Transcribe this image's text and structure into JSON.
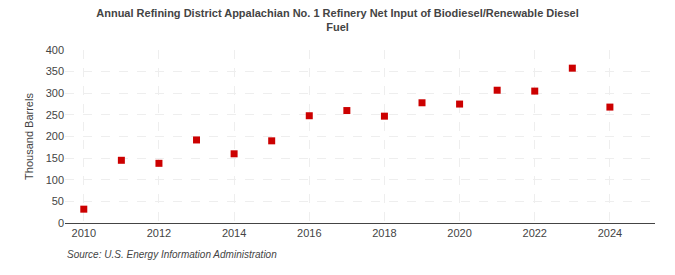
{
  "chart_data": {
    "type": "scatter",
    "title": "Annual Refining District Appalachian No. 1 Refinery Net Input of Biodiesel/Renewable Diesel\nFuel",
    "y_label": "Thousand Barrels",
    "annotations": [
      "Source: U.S. Energy Information Administration"
    ],
    "x": [
      2010,
      2011,
      2012,
      2013,
      2014,
      2015,
      2016,
      2017,
      2018,
      2019,
      2020,
      2021,
      2022,
      2023,
      2024
    ],
    "values": [
      32,
      145,
      138,
      192,
      160,
      190,
      248,
      260,
      247,
      278,
      275,
      307,
      305,
      358,
      268
    ],
    "color": "#cc0000",
    "marker": "square",
    "xlim": [
      2009.5,
      2025.2
    ],
    "xticks": [
      2010,
      2012,
      2014,
      2016,
      2018,
      2020,
      2022,
      2024
    ],
    "ylim": [
      0,
      400
    ],
    "yticks": [
      0,
      50,
      100,
      150,
      200,
      250,
      300,
      350,
      400
    ],
    "grid": true
  }
}
